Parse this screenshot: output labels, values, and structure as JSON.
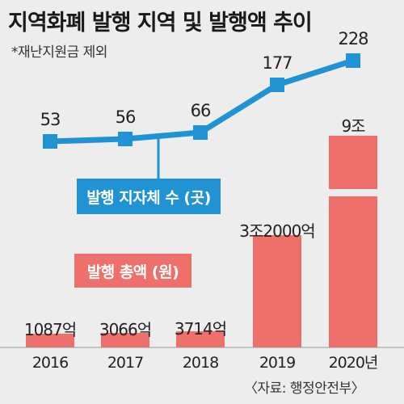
{
  "title": "지역화폐 발행 지역 및 발행액 추이",
  "subtitle": "*재난지원금 제외",
  "legend": {
    "line_label": "발행 지자체 수 (곳)",
    "bar_label": "발행 총액 (원)"
  },
  "source": "〈자료: 행정안전부〉",
  "colors": {
    "line": "#1f93d4",
    "bar": "#ef706a",
    "background": "#ededed"
  },
  "chart_data": {
    "type": "bar+line",
    "categories": [
      "2016",
      "2017",
      "2018",
      "2019",
      "2020년"
    ],
    "bar_series": {
      "name": "발행 총액 (원)",
      "values_eok": [
        1087,
        3066,
        3714,
        32000,
        90000
      ],
      "data_labels": [
        "1087억",
        "3066억",
        "3714억",
        "3조2000억",
        "9조"
      ]
    },
    "line_series": {
      "name": "발행 지자체 수 (곳)",
      "values": [
        53,
        56,
        66,
        177,
        228
      ],
      "data_labels": [
        "53",
        "56",
        "66",
        "177",
        "228"
      ]
    }
  }
}
